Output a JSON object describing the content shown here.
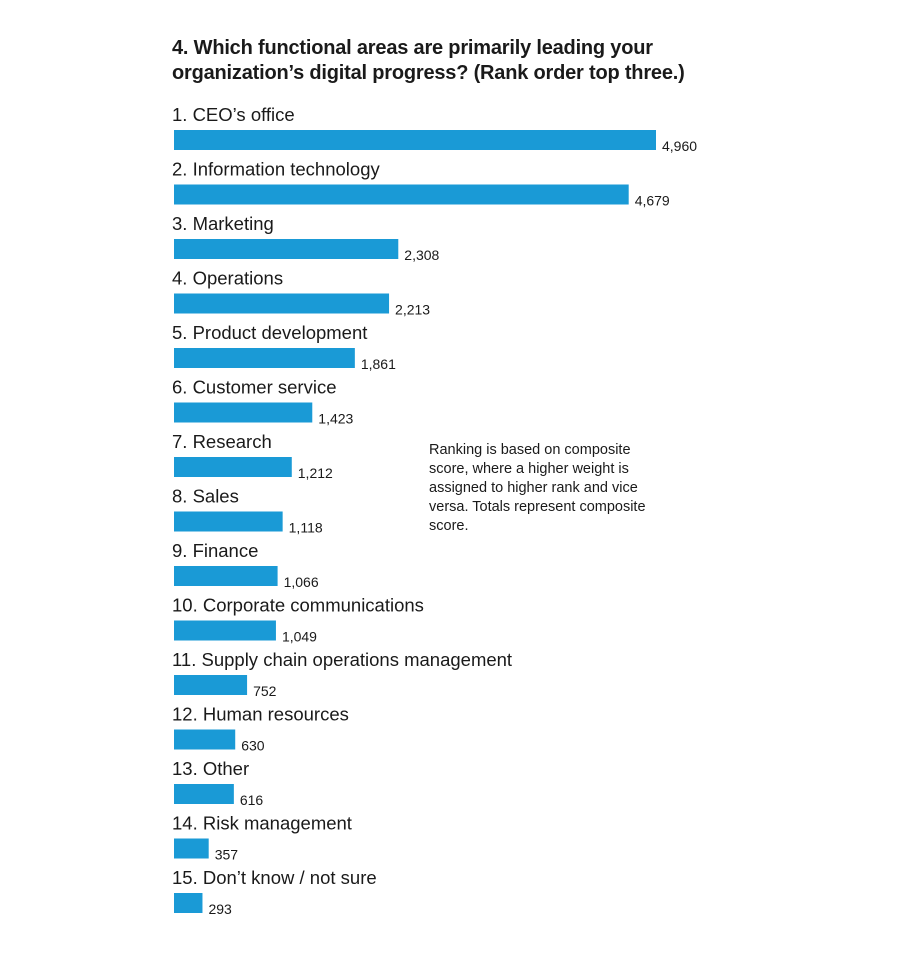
{
  "chart_data": {
    "type": "bar",
    "orientation": "horizontal",
    "title": "4. Which functional areas are primarily leading your organization’s digital progress? (Rank order top three.)",
    "title_lines": [
      "4. Which functional areas are primarily leading your",
      "organization’s digital progress? (Rank order top three.)"
    ],
    "categories": [
      "1. CEO’s office",
      "2. Information technology",
      "3. Marketing",
      "4. Operations",
      "5. Product development",
      "6. Customer service",
      "7. Research",
      "8. Sales",
      "9. Finance",
      "10. Corporate communications",
      "11. Supply chain operations management",
      "12. Human resources",
      "13. Other",
      "14. Risk management",
      "15. Don’t know / not sure"
    ],
    "values": [
      4960,
      4679,
      2308,
      2213,
      1861,
      1423,
      1212,
      1118,
      1066,
      1049,
      752,
      630,
      616,
      357,
      293
    ],
    "value_labels": [
      "4,960",
      "4,679",
      "2,308",
      "2,213",
      "1,861",
      "1,423",
      "1,212",
      "1,118",
      "1,066",
      "1,049",
      "752",
      "630",
      "616",
      "357",
      "293"
    ],
    "annotation": "Ranking is based on composite score, where a higher weight is assigned to higher rank and vice versa. Totals represent composite score.",
    "bar_color": "#1a9ad6",
    "grid": false,
    "legend": "none"
  }
}
